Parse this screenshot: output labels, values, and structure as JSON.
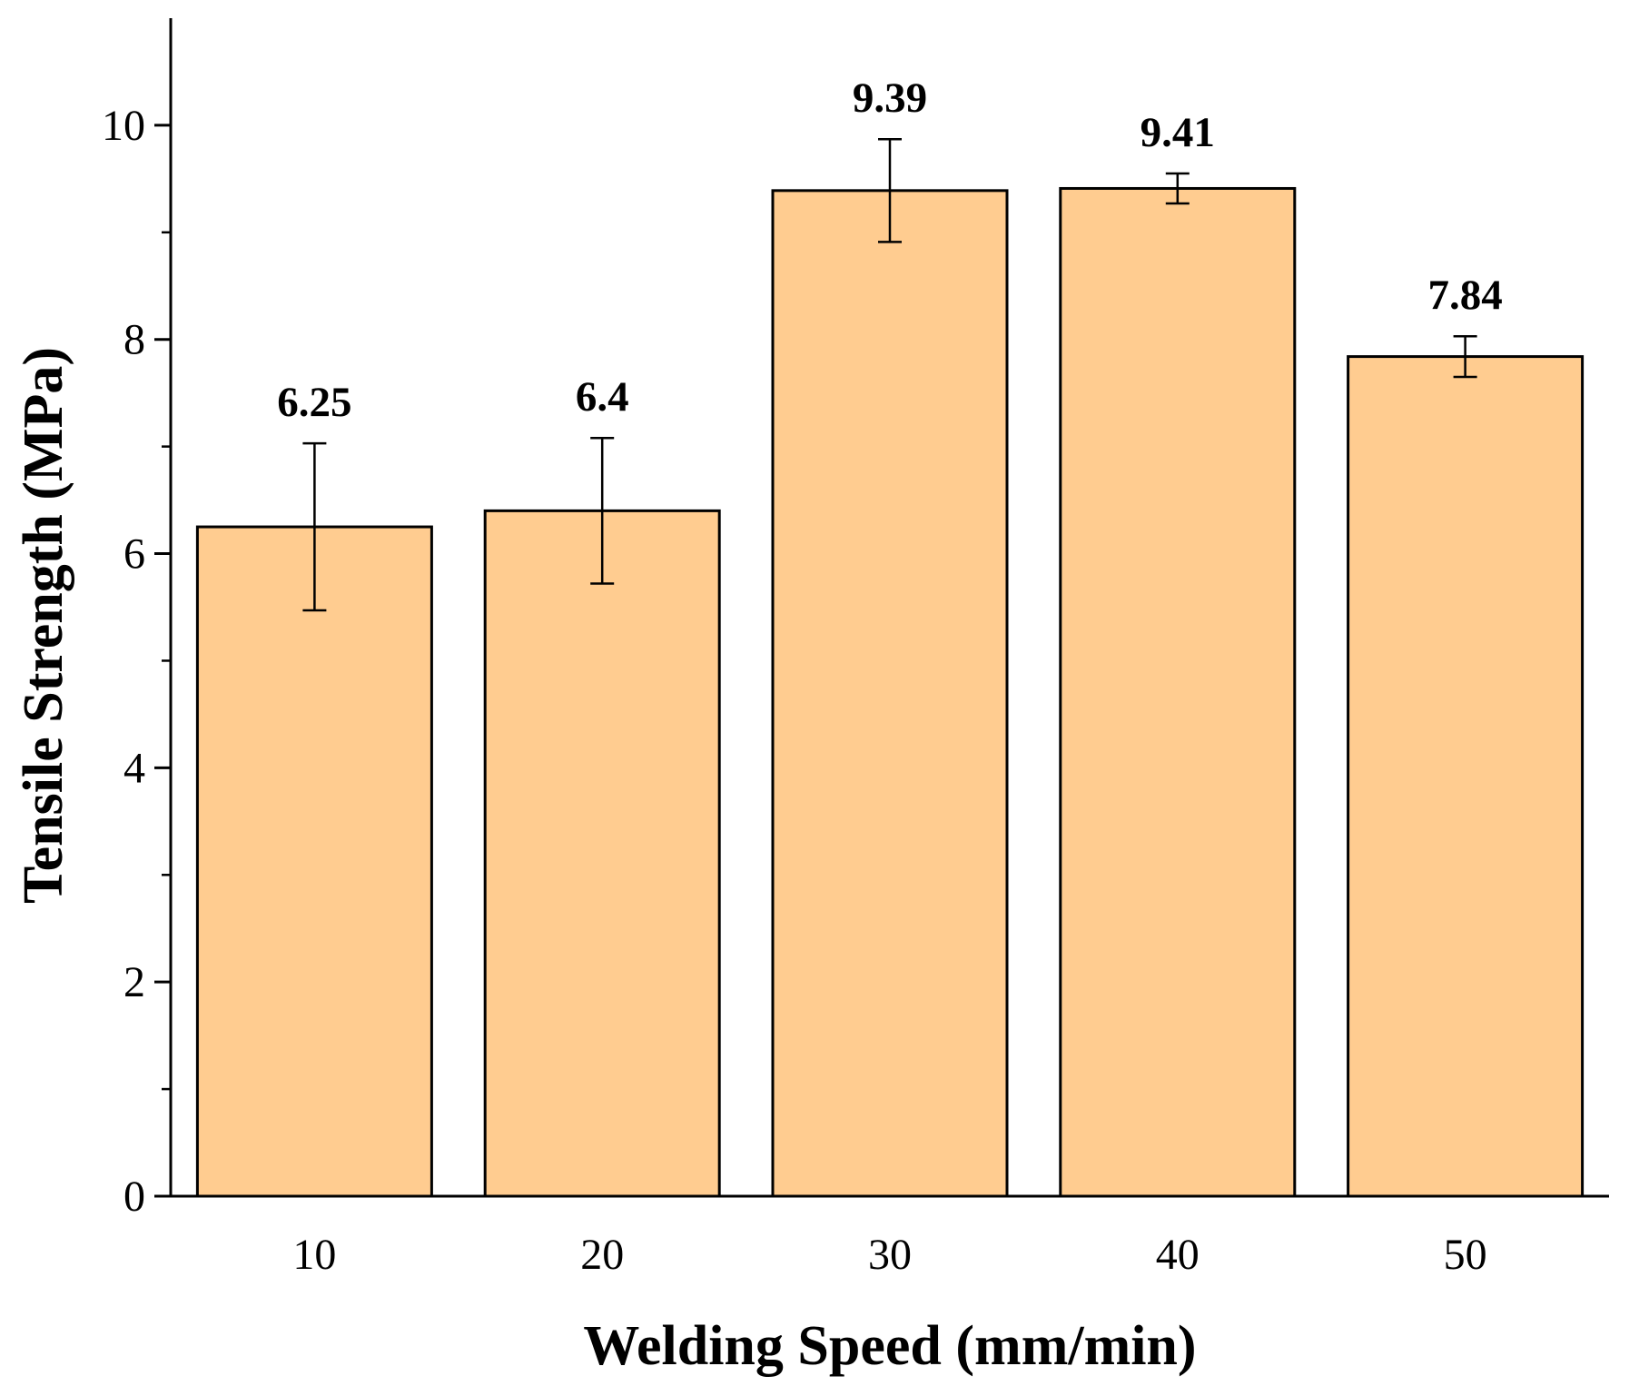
{
  "chart_data": {
    "type": "bar",
    "title": "",
    "xlabel": "Welding Speed (mm/min)",
    "ylabel": "Tensile Strength (MPa)",
    "categories": [
      "10",
      "20",
      "30",
      "40",
      "50"
    ],
    "values": [
      6.25,
      6.4,
      9.39,
      9.41,
      7.84
    ],
    "value_labels": [
      "6.25",
      "6.4",
      "9.39",
      "9.41",
      "7.84"
    ],
    "errors": [
      0.78,
      0.68,
      0.48,
      0.14,
      0.19
    ],
    "ylim": [
      0,
      11
    ],
    "yticks": [
      0,
      2,
      4,
      6,
      8,
      10
    ],
    "yticks_minor": [
      1,
      3,
      5,
      7,
      9
    ],
    "ytick_labels": [
      "0",
      "2",
      "4",
      "6",
      "8",
      "10"
    ],
    "grid": false,
    "legend": "none",
    "bar_color": "#FFCC90",
    "edge_color": "#000000"
  }
}
